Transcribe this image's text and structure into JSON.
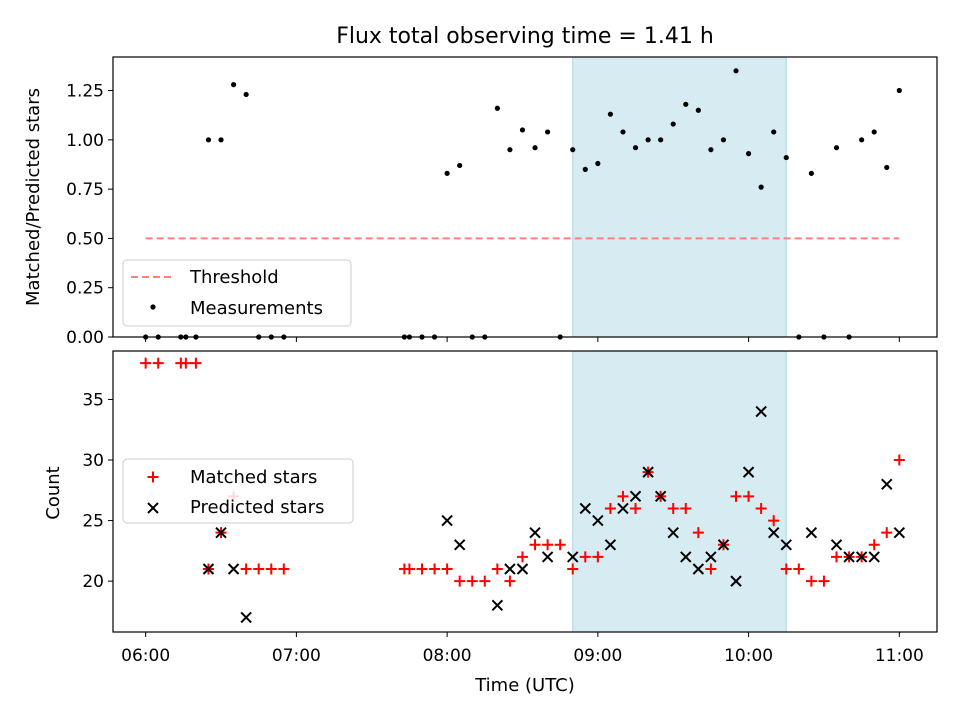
{
  "chart_data": [
    {
      "type": "scatter",
      "title": "Flux total observing time = 1.41 h",
      "xlabel": "",
      "ylabel": "Matched/Predicted stars",
      "xlim": [
        "05:47",
        "11:15"
      ],
      "ylim": [
        0,
        1.42
      ],
      "yticks": [
        "0.00",
        "0.25",
        "0.50",
        "0.75",
        "1.00",
        "1.25"
      ],
      "shaded_interval": [
        "08:50",
        "10:15"
      ],
      "legend": {
        "placement": "lower-left",
        "entries": [
          "Threshold",
          "Measurements"
        ]
      },
      "series": [
        {
          "name": "Threshold",
          "style": "dashed-line",
          "color": "#ff7f7f",
          "points": [
            [
              "06:00",
              0.5
            ],
            [
              "11:00",
              0.5
            ]
          ]
        },
        {
          "name": "Measurements",
          "style": "dot",
          "color": "#000000",
          "points": [
            [
              "06:00",
              0
            ],
            [
              "06:05",
              0
            ],
            [
              "06:14",
              0
            ],
            [
              "06:16",
              0
            ],
            [
              "06:20",
              0
            ],
            [
              "06:25",
              1.0
            ],
            [
              "06:30",
              1.0
            ],
            [
              "06:35",
              1.28
            ],
            [
              "06:40",
              1.23
            ],
            [
              "06:45",
              0
            ],
            [
              "06:50",
              0
            ],
            [
              "06:55",
              0
            ],
            [
              "07:43",
              0
            ],
            [
              "07:45",
              0
            ],
            [
              "07:50",
              0
            ],
            [
              "07:55",
              0
            ],
            [
              "08:00",
              0.83
            ],
            [
              "08:05",
              0.87
            ],
            [
              "08:10",
              0
            ],
            [
              "08:15",
              0
            ],
            [
              "08:20",
              1.16
            ],
            [
              "08:25",
              0.95
            ],
            [
              "08:30",
              1.05
            ],
            [
              "08:35",
              0.96
            ],
            [
              "08:40",
              1.04
            ],
            [
              "08:45",
              0
            ],
            [
              "08:50",
              0.95
            ],
            [
              "08:55",
              0.85
            ],
            [
              "09:00",
              0.88
            ],
            [
              "09:05",
              1.13
            ],
            [
              "09:10",
              1.04
            ],
            [
              "09:15",
              0.96
            ],
            [
              "09:20",
              1.0
            ],
            [
              "09:25",
              1.0
            ],
            [
              "09:30",
              1.08
            ],
            [
              "09:35",
              1.18
            ],
            [
              "09:40",
              1.15
            ],
            [
              "09:45",
              0.95
            ],
            [
              "09:50",
              1.0
            ],
            [
              "09:55",
              1.35
            ],
            [
              "10:00",
              0.93
            ],
            [
              "10:05",
              0.76
            ],
            [
              "10:10",
              1.04
            ],
            [
              "10:15",
              0.91
            ],
            [
              "10:20",
              0
            ],
            [
              "10:25",
              0.83
            ],
            [
              "10:30",
              0
            ],
            [
              "10:35",
              0.96
            ],
            [
              "10:40",
              0
            ],
            [
              "10:45",
              1.0
            ],
            [
              "10:50",
              1.04
            ],
            [
              "10:55",
              0.86
            ],
            [
              "11:00",
              1.25
            ]
          ]
        }
      ]
    },
    {
      "type": "scatter",
      "title": "",
      "xlabel": "Time (UTC)",
      "ylabel": "Count",
      "xlim": [
        "05:47",
        "11:15"
      ],
      "ylim": [
        15.8,
        39.0
      ],
      "xticks": [
        "06:00",
        "07:00",
        "08:00",
        "09:00",
        "10:00",
        "11:00"
      ],
      "yticks": [
        "20",
        "25",
        "30",
        "35"
      ],
      "shaded_interval": [
        "08:50",
        "10:15"
      ],
      "legend": {
        "placement": "center-left",
        "entries": [
          "Matched stars",
          "Predicted stars"
        ]
      },
      "series": [
        {
          "name": "Matched stars",
          "marker": "+",
          "color": "#ff0000",
          "points": [
            [
              "06:00",
              38
            ],
            [
              "06:05",
              38
            ],
            [
              "06:14",
              38
            ],
            [
              "06:16",
              38
            ],
            [
              "06:20",
              38
            ],
            [
              "06:25",
              21
            ],
            [
              "06:30",
              24
            ],
            [
              "06:35",
              27
            ],
            [
              "06:40",
              21
            ],
            [
              "06:45",
              21
            ],
            [
              "06:50",
              21
            ],
            [
              "06:55",
              21
            ],
            [
              "07:43",
              21
            ],
            [
              "07:45",
              21
            ],
            [
              "07:50",
              21
            ],
            [
              "07:55",
              21
            ],
            [
              "08:00",
              21
            ],
            [
              "08:05",
              20
            ],
            [
              "08:10",
              20
            ],
            [
              "08:15",
              20
            ],
            [
              "08:20",
              21
            ],
            [
              "08:25",
              20
            ],
            [
              "08:30",
              22
            ],
            [
              "08:35",
              23
            ],
            [
              "08:40",
              23
            ],
            [
              "08:45",
              23
            ],
            [
              "08:50",
              21
            ],
            [
              "08:55",
              22
            ],
            [
              "09:00",
              22
            ],
            [
              "09:05",
              26
            ],
            [
              "09:10",
              27
            ],
            [
              "09:15",
              26
            ],
            [
              "09:20",
              29
            ],
            [
              "09:25",
              27
            ],
            [
              "09:30",
              26
            ],
            [
              "09:35",
              26
            ],
            [
              "09:40",
              24
            ],
            [
              "09:45",
              21
            ],
            [
              "09:50",
              23
            ],
            [
              "09:55",
              27
            ],
            [
              "10:00",
              27
            ],
            [
              "10:05",
              26
            ],
            [
              "10:10",
              25
            ],
            [
              "10:15",
              21
            ],
            [
              "10:20",
              21
            ],
            [
              "10:25",
              20
            ],
            [
              "10:30",
              20
            ],
            [
              "10:35",
              22
            ],
            [
              "10:40",
              22
            ],
            [
              "10:45",
              22
            ],
            [
              "10:50",
              23
            ],
            [
              "10:55",
              24
            ],
            [
              "11:00",
              30
            ]
          ]
        },
        {
          "name": "Predicted stars",
          "marker": "x",
          "color": "#000000",
          "points": [
            [
              "06:25",
              21
            ],
            [
              "06:30",
              24
            ],
            [
              "06:35",
              21
            ],
            [
              "06:40",
              17
            ],
            [
              "08:00",
              25
            ],
            [
              "08:05",
              23
            ],
            [
              "08:20",
              18
            ],
            [
              "08:25",
              21
            ],
            [
              "08:30",
              21
            ],
            [
              "08:35",
              24
            ],
            [
              "08:40",
              22
            ],
            [
              "08:50",
              22
            ],
            [
              "08:55",
              26
            ],
            [
              "09:00",
              25
            ],
            [
              "09:05",
              23
            ],
            [
              "09:10",
              26
            ],
            [
              "09:15",
              27
            ],
            [
              "09:20",
              29
            ],
            [
              "09:25",
              27
            ],
            [
              "09:30",
              24
            ],
            [
              "09:35",
              22
            ],
            [
              "09:40",
              21
            ],
            [
              "09:45",
              22
            ],
            [
              "09:50",
              23
            ],
            [
              "09:55",
              20
            ],
            [
              "10:00",
              29
            ],
            [
              "10:05",
              34
            ],
            [
              "10:10",
              24
            ],
            [
              "10:15",
              23
            ],
            [
              "10:25",
              24
            ],
            [
              "10:35",
              23
            ],
            [
              "10:40",
              22
            ],
            [
              "10:45",
              22
            ],
            [
              "10:50",
              22
            ],
            [
              "10:55",
              28
            ],
            [
              "11:00",
              24
            ]
          ]
        }
      ]
    }
  ],
  "colors": {
    "shade": "#add8e6",
    "threshold": "#ff7f7f",
    "matched": "#ff0000",
    "predicted": "#000000",
    "measurement": "#000000"
  }
}
